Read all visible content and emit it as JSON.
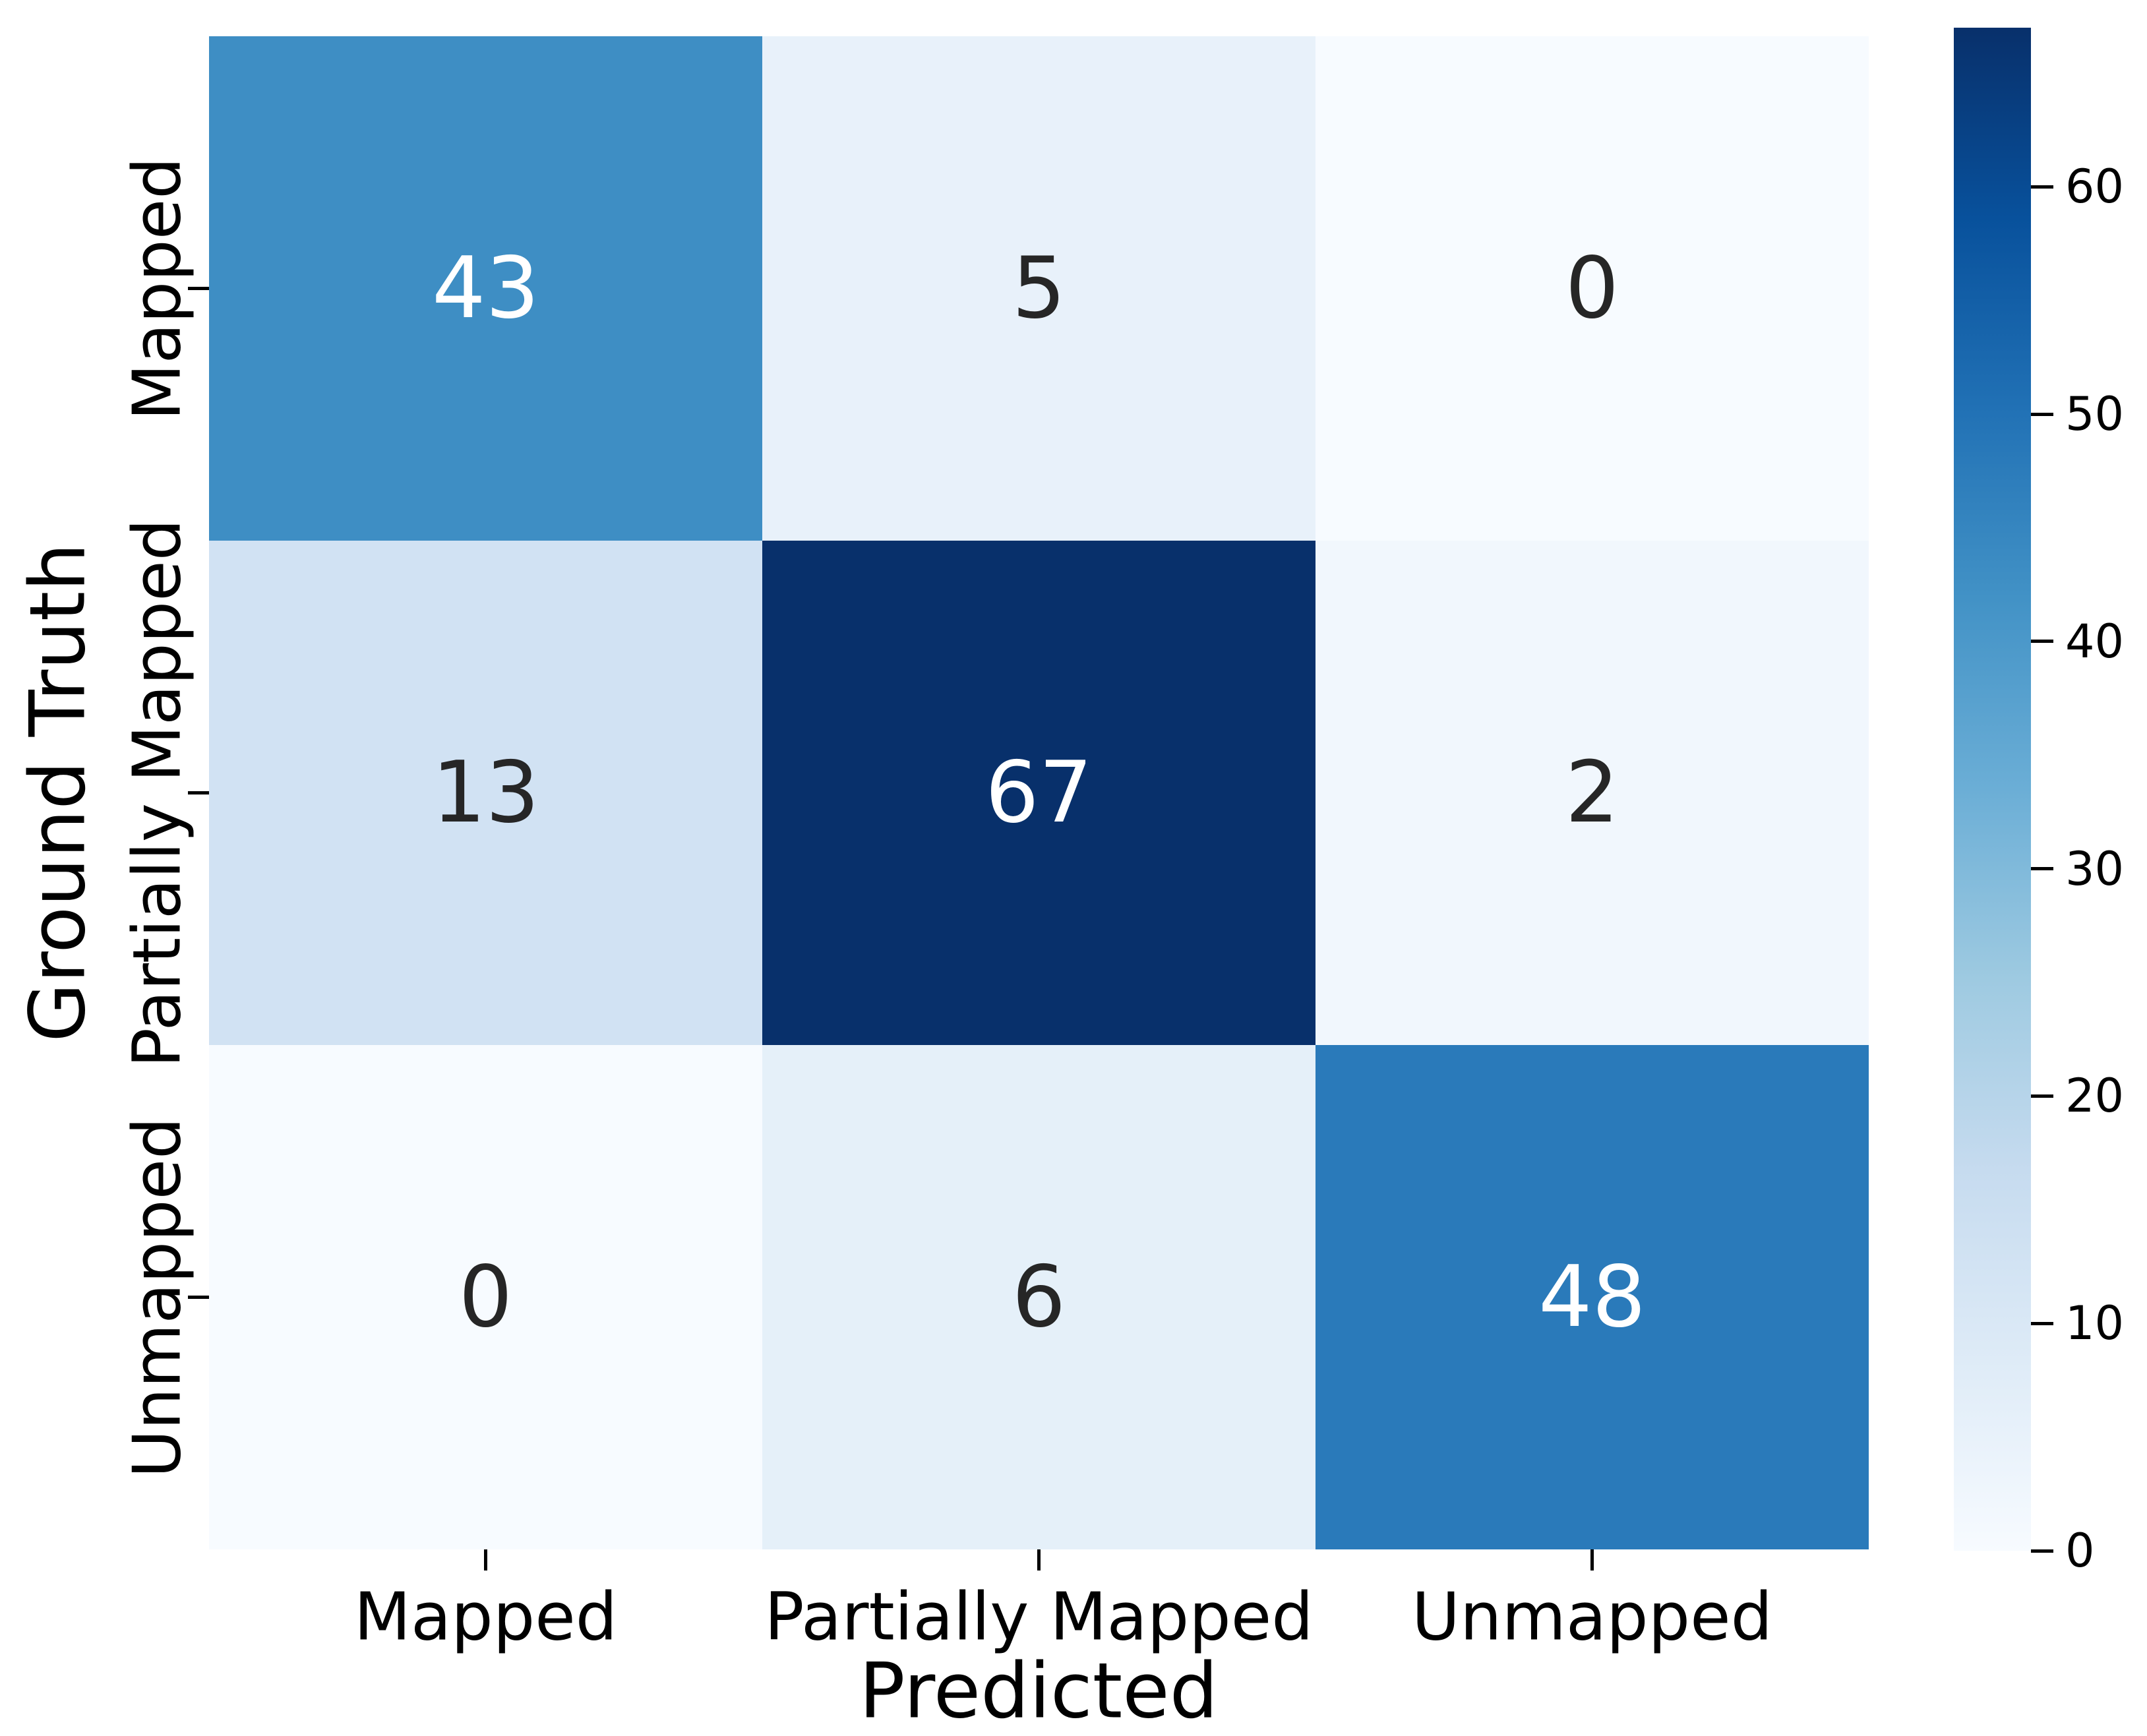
{
  "chart_data": {
    "type": "heatmap",
    "title": "",
    "xlabel": "Predicted",
    "ylabel": "Ground Truth",
    "x_categories": [
      "Mapped",
      "Partially Mapped",
      "Unmapped"
    ],
    "y_categories": [
      "Mapped",
      "Partially Mapped",
      "Unmapped"
    ],
    "matrix": [
      [
        43,
        5,
        0
      ],
      [
        13,
        67,
        2
      ],
      [
        0,
        6,
        48
      ]
    ],
    "vmin": 0,
    "vmax": 67,
    "colormap": "Blues",
    "colormap_stops": [
      "#f7fbff",
      "#deebf7",
      "#c6dbef",
      "#9ecae1",
      "#6baed6",
      "#4292c6",
      "#2171b5",
      "#08519c",
      "#08306b"
    ],
    "colorbar_ticks": [
      0,
      10,
      20,
      30,
      40,
      50,
      60
    ],
    "colorbar_position": "right",
    "grid": false,
    "colors": {
      "background": "#ffffff",
      "annotation_dark_text": "#262626",
      "annotation_light_text": "#ffffff",
      "axis_text": "#000000",
      "max_cell": "#08306b",
      "min_cell": "#f7fbff"
    }
  }
}
